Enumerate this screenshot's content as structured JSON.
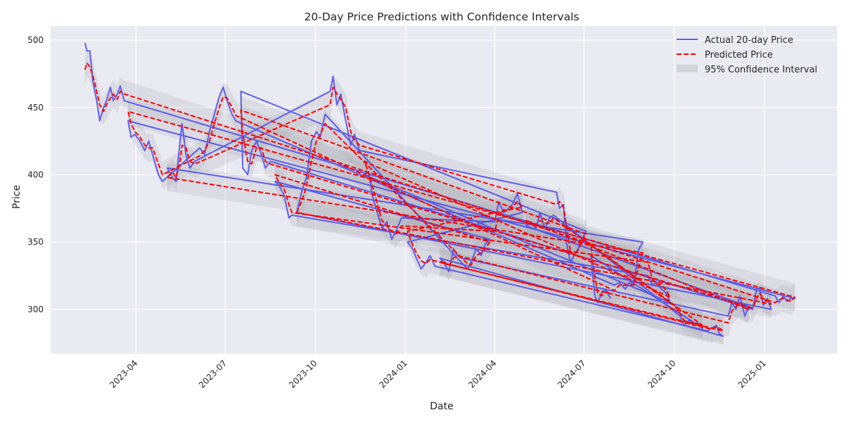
{
  "chart_data": {
    "type": "line",
    "title": "20-Day Price Predictions with Confidence Intervals",
    "xlabel": "Date",
    "ylabel": "Price",
    "xlim": [
      "2023-01-04",
      "2025-03-16"
    ],
    "ylim": [
      267,
      510.5
    ],
    "grid": true,
    "legend_position": "top-right",
    "x_ticks": [
      "2023-04",
      "2023-07",
      "2023-10",
      "2024-01",
      "2024-04",
      "2024-07",
      "2024-10",
      "2025-01"
    ],
    "y_ticks": [
      300,
      350,
      400,
      450,
      500
    ],
    "legend": [
      {
        "label": "Actual 20-day Price",
        "kind": "line",
        "color": "#5a5af0"
      },
      {
        "label": "Predicted Price",
        "kind": "dashed-line",
        "color": "#ff0000"
      },
      {
        "label": "95% Confidence Interval",
        "kind": "band",
        "color": "#c8c8cc"
      }
    ],
    "ci_halfwidth": 10,
    "series_note": "Points stored as [date, actual, predicted]; segments drawn in the listed draw order (unsorted index produces long connecting lines).",
    "segments": [
      [
        [
          "2023-02-08",
          498,
          478
        ],
        [
          "2023-02-10",
          492,
          483
        ],
        [
          "2023-02-13",
          492,
          480
        ],
        [
          "2023-02-16",
          470,
          474
        ],
        [
          "2023-02-20",
          455,
          462
        ],
        [
          "2023-02-23",
          440,
          452
        ],
        [
          "2023-02-27",
          450,
          447
        ],
        [
          "2023-03-02",
          455,
          452
        ],
        [
          "2023-03-06",
          465,
          457
        ],
        [
          "2023-03-09",
          455,
          460
        ],
        [
          "2023-03-13",
          460,
          456
        ],
        [
          "2023-03-16",
          466,
          462
        ],
        [
          "2023-03-20",
          455,
          460
        ]
      ],
      [
        [
          "2023-03-24",
          440,
          447
        ],
        [
          "2023-03-27",
          428,
          438
        ],
        [
          "2023-03-31",
          430,
          432
        ],
        [
          "2023-04-05",
          425,
          428
        ],
        [
          "2023-04-10",
          418,
          422
        ],
        [
          "2023-04-14",
          425,
          420
        ],
        [
          "2023-04-18",
          415,
          420
        ],
        [
          "2023-04-24",
          400,
          408
        ],
        [
          "2023-04-28",
          395,
          400
        ]
      ],
      [
        [
          "2023-05-03",
          405,
          398
        ],
        [
          "2023-05-08",
          398,
          402
        ],
        [
          "2023-05-12",
          395,
          398
        ],
        [
          "2023-05-16",
          425,
          410
        ],
        [
          "2023-05-18",
          438,
          422
        ],
        [
          "2023-05-22",
          415,
          420
        ],
        [
          "2023-05-26",
          405,
          410
        ],
        [
          "2023-05-31",
          410,
          408
        ]
      ],
      [
        [
          "2023-06-05",
          420,
          414
        ],
        [
          "2023-06-10",
          415,
          418
        ],
        [
          "2023-06-15",
          432,
          425
        ],
        [
          "2023-06-20",
          445,
          438
        ],
        [
          "2023-06-25",
          458,
          450
        ],
        [
          "2023-06-29",
          465,
          458
        ],
        [
          "2023-07-03",
          455,
          457
        ],
        [
          "2023-07-08",
          445,
          450
        ],
        [
          "2023-07-12",
          440,
          444
        ]
      ],
      [
        [
          "2023-07-17",
          462,
          448
        ],
        [
          "2023-07-19",
          405,
          430
        ],
        [
          "2023-07-24",
          400,
          410
        ],
        [
          "2023-07-28",
          418,
          408
        ],
        [
          "2023-08-02",
          425,
          420
        ],
        [
          "2023-08-07",
          415,
          420
        ],
        [
          "2023-08-11",
          405,
          410
        ],
        [
          "2023-08-16",
          410,
          408
        ]
      ],
      [
        [
          "2023-08-21",
          395,
          400
        ],
        [
          "2023-08-25",
          392,
          394
        ],
        [
          "2023-08-30",
          385,
          390
        ],
        [
          "2023-09-04",
          368,
          378
        ],
        [
          "2023-09-07",
          370,
          372
        ]
      ],
      [
        [
          "2023-09-12",
          372,
          372
        ],
        [
          "2023-09-18",
          390,
          382
        ],
        [
          "2023-09-22",
          398,
          392
        ],
        [
          "2023-09-27",
          425,
          410
        ],
        [
          "2023-10-02",
          432,
          425
        ],
        [
          "2023-10-06",
          428,
          430
        ],
        [
          "2023-10-11",
          445,
          438
        ]
      ],
      [
        [
          "2023-10-16",
          462,
          452
        ],
        [
          "2023-10-19",
          473,
          465
        ],
        [
          "2023-10-23",
          452,
          460
        ],
        [
          "2023-10-27",
          460,
          456
        ],
        [
          "2023-11-01",
          440,
          450
        ],
        [
          "2023-11-06",
          422,
          432
        ],
        [
          "2023-11-10",
          430,
          426
        ],
        [
          "2023-11-15",
          418,
          422
        ]
      ],
      [
        [
          "2023-11-20",
          400,
          410
        ],
        [
          "2023-11-24",
          402,
          402
        ],
        [
          "2023-11-29",
          382,
          390
        ],
        [
          "2023-12-04",
          370,
          376
        ],
        [
          "2023-12-08",
          360,
          366
        ],
        [
          "2023-12-13",
          365,
          362
        ],
        [
          "2023-12-18",
          352,
          358
        ],
        [
          "2023-12-22",
          358,
          356
        ],
        [
          "2023-12-28",
          368,
          362
        ]
      ],
      [
        [
          "2024-01-03",
          350,
          358
        ],
        [
          "2024-01-08",
          345,
          348
        ],
        [
          "2024-01-12",
          338,
          342
        ],
        [
          "2024-01-17",
          330,
          336
        ],
        [
          "2024-01-22",
          335,
          334
        ],
        [
          "2024-01-26",
          340,
          337
        ],
        [
          "2024-01-31",
          332,
          336
        ]
      ],
      [
        [
          "2024-02-05",
          338,
          335
        ],
        [
          "2024-02-09",
          335,
          336
        ],
        [
          "2024-02-14",
          328,
          332
        ],
        [
          "2024-02-19",
          345,
          338
        ],
        [
          "2024-02-23",
          340,
          340
        ],
        [
          "2024-02-28",
          338,
          339
        ]
      ],
      [
        [
          "2024-03-04",
          330,
          334
        ],
        [
          "2024-03-08",
          335,
          333
        ],
        [
          "2024-03-13",
          345,
          340
        ],
        [
          "2024-03-18",
          340,
          342
        ],
        [
          "2024-03-22",
          348,
          345
        ],
        [
          "2024-03-27",
          352,
          350
        ]
      ],
      [
        [
          "2024-04-01",
          365,
          358
        ],
        [
          "2024-04-05",
          380,
          370
        ],
        [
          "2024-04-10",
          372,
          374
        ],
        [
          "2024-04-15",
          375,
          373
        ],
        [
          "2024-04-19",
          378,
          376
        ],
        [
          "2024-04-24",
          386,
          380
        ],
        [
          "2024-04-29",
          372,
          376
        ]
      ],
      [
        [
          "2024-05-03",
          362,
          366
        ],
        [
          "2024-05-08",
          365,
          364
        ],
        [
          "2024-05-13",
          360,
          362
        ],
        [
          "2024-05-17",
          372,
          366
        ],
        [
          "2024-05-22",
          360,
          364
        ],
        [
          "2024-05-27",
          368,
          364
        ],
        [
          "2024-05-31",
          370,
          368
        ]
      ],
      [
        [
          "2024-06-03",
          387,
          378
        ],
        [
          "2024-06-06",
          375,
          380
        ],
        [
          "2024-06-10",
          378,
          376
        ],
        [
          "2024-06-13",
          350,
          362
        ],
        [
          "2024-06-17",
          335,
          344
        ],
        [
          "2024-06-21",
          340,
          340
        ],
        [
          "2024-06-25",
          345,
          344
        ],
        [
          "2024-06-29",
          352,
          350
        ],
        [
          "2024-07-03",
          358,
          356
        ]
      ],
      [
        [
          "2024-07-08",
          340,
          348
        ],
        [
          "2024-07-12",
          310,
          325
        ],
        [
          "2024-07-15",
          305,
          312
        ],
        [
          "2024-07-19",
          312,
          310
        ],
        [
          "2024-07-23",
          315,
          313
        ],
        [
          "2024-07-28",
          308,
          312
        ]
      ],
      [
        [
          "2024-08-01",
          318,
          314
        ],
        [
          "2024-08-06",
          320,
          318
        ],
        [
          "2024-08-12",
          315,
          318
        ],
        [
          "2024-08-16",
          320,
          318
        ],
        [
          "2024-08-21",
          318,
          318
        ],
        [
          "2024-08-26",
          345,
          332
        ],
        [
          "2024-08-30",
          350,
          342
        ]
      ],
      [
        [
          "2024-09-04",
          325,
          335
        ],
        [
          "2024-09-09",
          318,
          322
        ],
        [
          "2024-09-13",
          320,
          319
        ],
        [
          "2024-09-18",
          315,
          318
        ],
        [
          "2024-09-23",
          312,
          314
        ],
        [
          "2024-09-27",
          305,
          309
        ]
      ],
      [
        [
          "2024-10-02",
          298,
          302
        ],
        [
          "2024-10-07",
          295,
          297
        ],
        [
          "2024-10-11",
          288,
          292
        ],
        [
          "2024-10-16",
          292,
          290
        ],
        [
          "2024-10-21",
          288,
          290
        ],
        [
          "2024-10-25",
          290,
          289
        ],
        [
          "2024-10-30",
          286,
          288
        ]
      ],
      [
        [
          "2024-11-04",
          284,
          286
        ],
        [
          "2024-11-08",
          286,
          285
        ],
        [
          "2024-11-13",
          288,
          287
        ],
        [
          "2024-11-16",
          282,
          286
        ],
        [
          "2024-11-20",
          280,
          284
        ]
      ],
      [
        [
          "2024-11-25",
          295,
          290
        ],
        [
          "2024-11-29",
          305,
          299
        ],
        [
          "2024-12-03",
          300,
          302
        ],
        [
          "2024-12-07",
          310,
          305
        ],
        [
          "2024-12-12",
          295,
          301
        ],
        [
          "2024-12-16",
          302,
          300
        ]
      ],
      [
        [
          "2024-12-20",
          300,
          301
        ],
        [
          "2024-12-24",
          315,
          308
        ],
        [
          "2024-12-27",
          316,
          312
        ],
        [
          "2024-12-31",
          303,
          308
        ],
        [
          "2025-01-04",
          308,
          306
        ],
        [
          "2025-01-08",
          300,
          304
        ]
      ],
      [
        [
          "2025-01-12",
          310,
          305
        ],
        [
          "2025-01-16",
          305,
          307
        ],
        [
          "2025-01-20",
          310,
          308
        ],
        [
          "2025-01-24",
          306,
          307
        ],
        [
          "2025-01-28",
          308,
          306
        ],
        [
          "2025-02-01",
          308,
          309
        ]
      ]
    ],
    "draw_order": [
      0,
      22,
      1,
      3,
      16,
      2,
      7,
      14,
      4,
      21,
      6,
      11,
      5,
      17,
      8,
      12,
      9,
      19,
      10,
      20,
      13,
      18,
      15
    ]
  }
}
